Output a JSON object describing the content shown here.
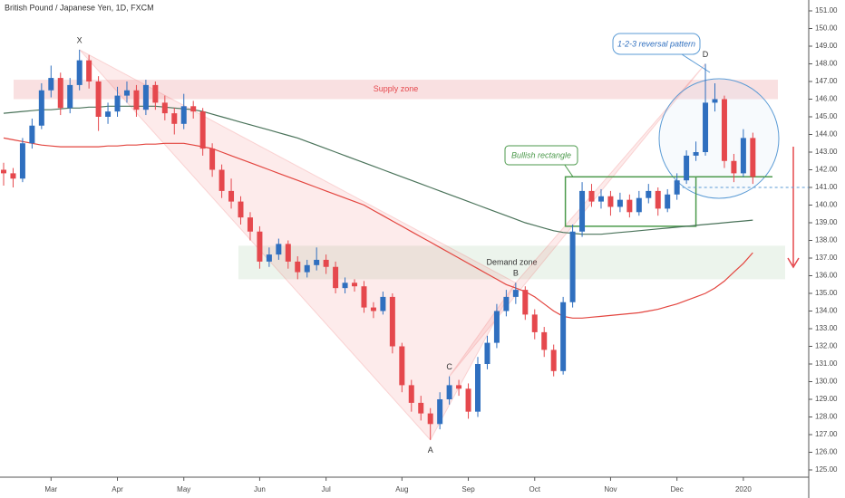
{
  "chart_data": {
    "type": "candlestick",
    "title": "British Pound / Japanese Yen, 1D, FXCM",
    "categories": [
      null,
      null,
      null,
      null,
      null,
      "Mar",
      null,
      null,
      null,
      null,
      null,
      null,
      "Apr",
      null,
      null,
      null,
      null,
      null,
      null,
      "May",
      null,
      null,
      null,
      null,
      null,
      null,
      null,
      "Jun",
      null,
      null,
      null,
      null,
      null,
      null,
      "Jul",
      null,
      null,
      null,
      null,
      null,
      null,
      null,
      "Aug",
      null,
      null,
      null,
      null,
      null,
      null,
      "Sep",
      null,
      null,
      null,
      null,
      null,
      null,
      "Oct",
      null,
      null,
      null,
      null,
      null,
      null,
      null,
      "Nov",
      null,
      null,
      null,
      null,
      null,
      null,
      "Dec",
      null,
      null,
      null,
      null,
      null,
      null,
      "2020",
      null
    ],
    "open": [
      142.0,
      141.8,
      141.5,
      143.5,
      144.5,
      146.5,
      147.2,
      145.5,
      146.8,
      148.2,
      147.0,
      145.0,
      145.3,
      146.2,
      146.5,
      145.4,
      146.8,
      145.8,
      145.2,
      144.6,
      145.6,
      145.3,
      143.2,
      142.0,
      140.8,
      140.2,
      139.3,
      138.5,
      136.8,
      137.2,
      137.8,
      136.8,
      136.2,
      136.6,
      136.9,
      136.5,
      135.3,
      135.6,
      135.4,
      134.2,
      134.0,
      134.8,
      132.0,
      129.8,
      128.8,
      128.2,
      127.6,
      129.0,
      129.8,
      129.6,
      128.3,
      131.0,
      132.2,
      134.0,
      134.8,
      135.2,
      133.8,
      132.8,
      131.8,
      130.6,
      134.5,
      138.5,
      140.8,
      140.2,
      140.5,
      139.9,
      140.3,
      139.6,
      140.4,
      140.8,
      139.8,
      140.6,
      141.4,
      142.8,
      143.0,
      145.8,
      146.0,
      142.5,
      141.8,
      143.8
    ],
    "high": [
      142.4,
      142.1,
      143.8,
      144.9,
      146.9,
      147.9,
      147.5,
      147.2,
      148.8,
      148.5,
      147.3,
      145.8,
      146.7,
      147.0,
      146.8,
      147.1,
      147.0,
      146.2,
      145.5,
      146.3,
      145.9,
      145.5,
      143.5,
      142.3,
      141.5,
      140.5,
      139.6,
      138.8,
      137.6,
      138.1,
      138.0,
      137.1,
      136.9,
      137.6,
      137.2,
      136.8,
      135.9,
      135.8,
      135.7,
      134.5,
      135.1,
      135.0,
      132.2,
      130.1,
      129.2,
      128.5,
      129.4,
      130.3,
      130.1,
      129.9,
      131.4,
      132.6,
      134.4,
      135.2,
      135.6,
      135.4,
      134.1,
      133.1,
      132.1,
      134.8,
      138.9,
      141.3,
      141.2,
      140.9,
      140.8,
      140.7,
      140.6,
      140.8,
      141.2,
      141.0,
      140.9,
      141.8,
      143.1,
      143.6,
      148.0,
      146.9,
      146.2,
      142.9,
      144.3,
      144.1
    ],
    "low": [
      141.1,
      141.0,
      141.3,
      143.2,
      144.3,
      146.1,
      145.1,
      145.2,
      146.5,
      146.6,
      144.2,
      144.6,
      145.0,
      145.8,
      145.0,
      145.1,
      145.4,
      144.8,
      144.0,
      144.3,
      144.9,
      142.8,
      141.6,
      140.4,
      139.8,
      138.9,
      138.0,
      136.4,
      136.5,
      136.9,
      136.4,
      135.8,
      135.9,
      136.3,
      136.1,
      135.0,
      135.0,
      135.1,
      133.9,
      133.6,
      133.8,
      131.6,
      129.4,
      128.3,
      127.8,
      126.7,
      127.3,
      128.7,
      129.2,
      127.9,
      128.0,
      130.7,
      131.9,
      133.7,
      134.4,
      133.5,
      132.4,
      131.4,
      130.3,
      130.4,
      134.2,
      138.2,
      139.9,
      139.8,
      139.4,
      139.6,
      139.3,
      139.4,
      140.1,
      139.4,
      139.6,
      140.3,
      141.2,
      142.5,
      142.8,
      145.3,
      142.1,
      141.3,
      141.6,
      141.2
    ],
    "close": [
      141.8,
      141.5,
      143.5,
      144.5,
      146.5,
      147.2,
      145.5,
      146.8,
      148.2,
      147.0,
      145.0,
      145.3,
      146.2,
      146.5,
      145.4,
      146.8,
      145.8,
      145.2,
      144.6,
      145.6,
      145.3,
      143.2,
      142.0,
      140.8,
      140.2,
      139.3,
      138.5,
      136.8,
      137.2,
      137.8,
      136.8,
      136.2,
      136.6,
      136.9,
      136.5,
      135.3,
      135.6,
      135.4,
      134.2,
      134.0,
      134.8,
      132.0,
      129.8,
      128.8,
      128.2,
      127.6,
      129.0,
      129.8,
      129.6,
      128.3,
      131.0,
      132.2,
      134.0,
      134.8,
      135.2,
      133.8,
      132.8,
      131.8,
      130.6,
      134.5,
      138.5,
      140.8,
      140.2,
      140.5,
      139.9,
      140.3,
      139.6,
      140.4,
      140.8,
      139.8,
      140.6,
      141.4,
      142.8,
      143.0,
      145.8,
      146.0,
      142.5,
      141.8,
      143.8,
      141.6
    ],
    "up_color": "#2f6fbf",
    "down_color": "#e5484d",
    "moving_averages": [
      {
        "color": "#4a735a",
        "values": [
          145.2,
          145.25,
          145.3,
          145.35,
          145.4,
          145.4,
          145.45,
          145.5,
          145.5,
          145.55,
          145.55,
          145.6,
          145.6,
          145.6,
          145.6,
          145.6,
          145.6,
          145.55,
          145.5,
          145.45,
          145.4,
          145.3,
          145.15,
          145.0,
          144.85,
          144.7,
          144.55,
          144.4,
          144.25,
          144.1,
          143.95,
          143.8,
          143.6,
          143.4,
          143.2,
          143.0,
          142.8,
          142.6,
          142.4,
          142.2,
          142.0,
          141.8,
          141.6,
          141.4,
          141.2,
          141.0,
          140.8,
          140.6,
          140.4,
          140.2,
          140.0,
          139.8,
          139.6,
          139.4,
          139.2,
          139.0,
          138.85,
          138.7,
          138.55,
          138.45,
          138.4,
          138.35,
          138.35,
          138.35,
          138.4,
          138.45,
          138.5,
          138.55,
          138.6,
          138.65,
          138.7,
          138.75,
          138.8,
          138.85,
          138.9,
          138.95,
          139.0,
          139.05,
          139.1,
          139.15
        ]
      },
      {
        "color": "#e3453f",
        "values": [
          143.8,
          143.7,
          143.6,
          143.5,
          143.4,
          143.35,
          143.3,
          143.3,
          143.3,
          143.3,
          143.3,
          143.35,
          143.35,
          143.4,
          143.4,
          143.45,
          143.45,
          143.5,
          143.5,
          143.5,
          143.4,
          143.3,
          143.2,
          143.0,
          142.8,
          142.6,
          142.4,
          142.2,
          142.0,
          141.8,
          141.6,
          141.4,
          141.2,
          141.0,
          140.8,
          140.6,
          140.4,
          140.2,
          140.0,
          139.7,
          139.4,
          139.1,
          138.8,
          138.5,
          138.2,
          137.9,
          137.6,
          137.3,
          137.0,
          136.7,
          136.4,
          136.1,
          135.8,
          135.5,
          135.3,
          135.1,
          134.8,
          134.4,
          134.0,
          133.7,
          133.6,
          133.6,
          133.65,
          133.7,
          133.75,
          133.8,
          133.85,
          133.9,
          134.0,
          134.1,
          134.25,
          134.4,
          134.6,
          134.8,
          135.0,
          135.3,
          135.7,
          136.2,
          136.7,
          137.3
        ]
      }
    ],
    "zones": [
      {
        "label": "Supply zone",
        "range": [
          146.0,
          147.1
        ],
        "color": "#f4c7c9",
        "text_color": "#e5484d"
      },
      {
        "label": "Demand zone",
        "range": [
          135.8,
          137.7
        ],
        "color": "#dcebdc",
        "text_color": "#333333"
      }
    ],
    "rectangle": {
      "label": "Bullish rectangle",
      "range": [
        138.8,
        141.6
      ],
      "color": "#4c9a4c"
    },
    "pattern_label": "1-2-3 reversal pattern",
    "price_line": 141.0,
    "points": [
      {
        "label": "X",
        "value": 148.8
      },
      {
        "label": "A",
        "value": 126.7
      },
      {
        "label": "B",
        "value": 135.6
      },
      {
        "label": "C",
        "value": 130.3
      },
      {
        "label": "D",
        "value": 148.0
      }
    ],
    "ylim": [
      125,
      151
    ],
    "yticks": [
      {
        "value": 125,
        "label": "125.00"
      },
      {
        "value": 126,
        "label": "126.00"
      },
      {
        "value": 127,
        "label": "127.00"
      },
      {
        "value": 128,
        "label": "128.00"
      },
      {
        "value": 129,
        "label": "129.00"
      },
      {
        "value": 130,
        "label": "130.00"
      },
      {
        "value": 131,
        "label": "131.00"
      },
      {
        "value": 132,
        "label": "132.00"
      },
      {
        "value": 133,
        "label": "133.00"
      },
      {
        "value": 134,
        "label": "134.00"
      },
      {
        "value": 135,
        "label": "135.00"
      },
      {
        "value": 136,
        "label": "136.00"
      },
      {
        "value": 137,
        "label": "137.00"
      },
      {
        "value": 138,
        "label": "138.00"
      },
      {
        "value": 139,
        "label": "139.00"
      },
      {
        "value": 140,
        "label": "140.00"
      },
      {
        "value": 141,
        "label": "141.00"
      },
      {
        "value": 142,
        "label": "142.00"
      },
      {
        "value": 143,
        "label": "143.00"
      },
      {
        "value": 144,
        "label": "144.00"
      },
      {
        "value": 145,
        "label": "145.00"
      },
      {
        "value": 146,
        "label": "146.00"
      },
      {
        "value": 147,
        "label": "147.00"
      },
      {
        "value": 148,
        "label": "148.00"
      },
      {
        "value": 149,
        "label": "149.00"
      },
      {
        "value": 150,
        "label": "150.00"
      },
      {
        "value": 151,
        "label": "151.00"
      }
    ]
  }
}
